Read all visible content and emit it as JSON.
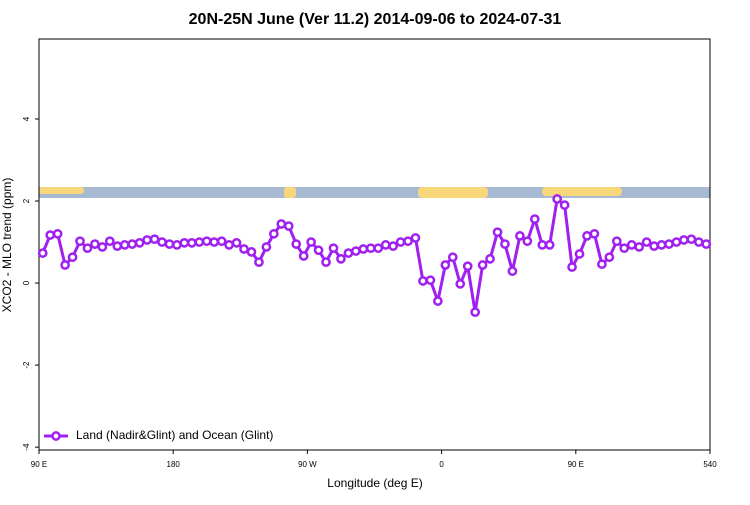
{
  "chart_data": {
    "type": "line",
    "title": "20N-25N June (Ver 11.2)   2014-09-06 to 2024-07-31",
    "x_label": "Longitude (deg E)",
    "y_label": "XCO2 - MLO trend (ppm)",
    "xlim": [
      90,
      540
    ],
    "ylim": [
      -4.07,
      5.95
    ],
    "xticks": [
      {
        "value": 90,
        "label": "90 E"
      },
      180,
      {
        "value": 270,
        "label": "90 W"
      },
      {
        "value": 360,
        "label": "0"
      },
      {
        "value": 450,
        "label": "90 E"
      },
      540
    ],
    "yticks": [
      -4,
      -2,
      0,
      2,
      4
    ],
    "legend_position": "bottom-left",
    "x": [
      92.5,
      97.5,
      102.5,
      107.5,
      112.5,
      117.5,
      122.5,
      127.5,
      132.5,
      137.5,
      142.5,
      147.5,
      152.5,
      157.5,
      162.5,
      167.5,
      172.5,
      177.5,
      182.5,
      187.5,
      192.5,
      197.5,
      202.5,
      207.5,
      212.5,
      217.5,
      222.5,
      227.5,
      232.5,
      237.5,
      242.5,
      247.5,
      252.5,
      257.5,
      262.5,
      267.5,
      272.5,
      277.5,
      282.5,
      287.5,
      292.5,
      297.5,
      302.5,
      307.5,
      312.5,
      317.5,
      322.5,
      327.5,
      332.5,
      337.5,
      342.5,
      347.5,
      352.5,
      357.5,
      362.5,
      367.5,
      372.5,
      377.5,
      382.5,
      387.5,
      392.5,
      397.5,
      402.5,
      407.5,
      412.5,
      417.5,
      422.5,
      427.5,
      432.5,
      437.5,
      442.5,
      447.5,
      452.5,
      457.5,
      462.5,
      467.5,
      472.5,
      477.5,
      482.5,
      487.5,
      492.5,
      497.5,
      502.5,
      507.5,
      512.5,
      517.5,
      522.5,
      527.5,
      532.5,
      537.5
    ],
    "series": [
      {
        "name": "Land (Nadir&Glint) and Ocean (Glint)",
        "color": "#a020f0",
        "values": [
          0.73,
          1.17,
          1.2,
          0.44,
          0.63,
          1.02,
          0.85,
          0.95,
          0.88,
          1.02,
          0.9,
          0.93,
          0.95,
          0.98,
          1.05,
          1.07,
          1.0,
          0.95,
          0.93,
          0.98,
          0.98,
          1.0,
          1.02,
          1.0,
          1.02,
          0.93,
          0.98,
          0.83,
          0.76,
          0.51,
          0.88,
          1.2,
          1.44,
          1.39,
          0.95,
          0.66,
          1.0,
          0.8,
          0.51,
          0.85,
          0.59,
          0.73,
          0.78,
          0.83,
          0.85,
          0.85,
          0.93,
          0.9,
          1.0,
          1.02,
          1.1,
          0.05,
          0.07,
          -0.44,
          0.44,
          0.63,
          -0.02,
          0.41,
          -0.71,
          0.44,
          0.59,
          1.24,
          0.95,
          0.29,
          1.15,
          1.02,
          1.56,
          0.93,
          0.93,
          2.05,
          1.9,
          0.39,
          0.71,
          1.15,
          1.2,
          0.46,
          0.63,
          1.02,
          0.85,
          0.93,
          0.88,
          1.0,
          0.9,
          0.93,
          0.95,
          1.0,
          1.05,
          1.07,
          1.0,
          0.95
        ]
      }
    ]
  }
}
